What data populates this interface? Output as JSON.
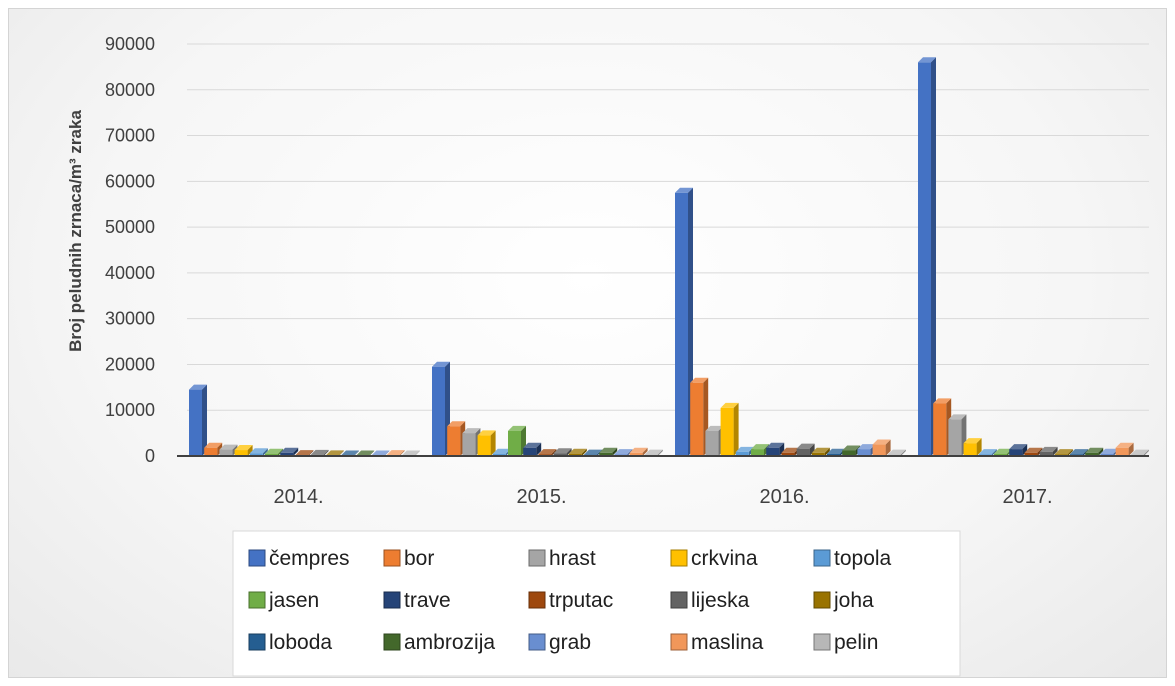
{
  "chart_data": {
    "type": "bar",
    "title": "",
    "xlabel": "",
    "ylabel": "Broj peludnih zrnaca/m³ zraka",
    "ylim": [
      0,
      90000
    ],
    "yticks": [
      0,
      10000,
      20000,
      30000,
      40000,
      50000,
      60000,
      70000,
      80000,
      90000
    ],
    "grid": true,
    "legend_position": "bottom",
    "categories": [
      "2014.",
      "2015.",
      "2016.",
      "2017."
    ],
    "series": [
      {
        "name": "čempres",
        "color": "#4472C4",
        "values": [
          14500,
          19500,
          57500,
          86000
        ]
      },
      {
        "name": "bor",
        "color": "#ED7D31",
        "values": [
          1800,
          6500,
          16000,
          11500
        ]
      },
      {
        "name": "hrast",
        "color": "#A5A5A5",
        "values": [
          1400,
          5000,
          5500,
          8000
        ]
      },
      {
        "name": "crkvina",
        "color": "#FFC000",
        "values": [
          1300,
          4500,
          10500,
          2800
        ]
      },
      {
        "name": "topola",
        "color": "#5B9BD5",
        "values": [
          600,
          500,
          900,
          400
        ]
      },
      {
        "name": "jasen",
        "color": "#70AD47",
        "values": [
          500,
          5500,
          1500,
          500
        ]
      },
      {
        "name": "trave",
        "color": "#264478",
        "values": [
          700,
          1800,
          1800,
          1500
        ]
      },
      {
        "name": "trputac",
        "color": "#9E480E",
        "values": [
          200,
          400,
          700,
          700
        ]
      },
      {
        "name": "lijeska",
        "color": "#636363",
        "values": [
          250,
          600,
          1600,
          900
        ]
      },
      {
        "name": "joha",
        "color": "#997300",
        "values": [
          150,
          500,
          700,
          400
        ]
      },
      {
        "name": "loboda",
        "color": "#255E91",
        "values": [
          100,
          300,
          500,
          400
        ]
      },
      {
        "name": "ambrozija",
        "color": "#43682B",
        "values": [
          100,
          700,
          1200,
          700
        ]
      },
      {
        "name": "grab",
        "color": "#698ED0",
        "values": [
          100,
          400,
          1500,
          500
        ]
      },
      {
        "name": "maslina",
        "color": "#F1975A",
        "values": [
          200,
          700,
          2500,
          1800
        ]
      },
      {
        "name": "pelin",
        "color": "#B7B7B7",
        "values": [
          100,
          300,
          300,
          300
        ]
      }
    ]
  }
}
